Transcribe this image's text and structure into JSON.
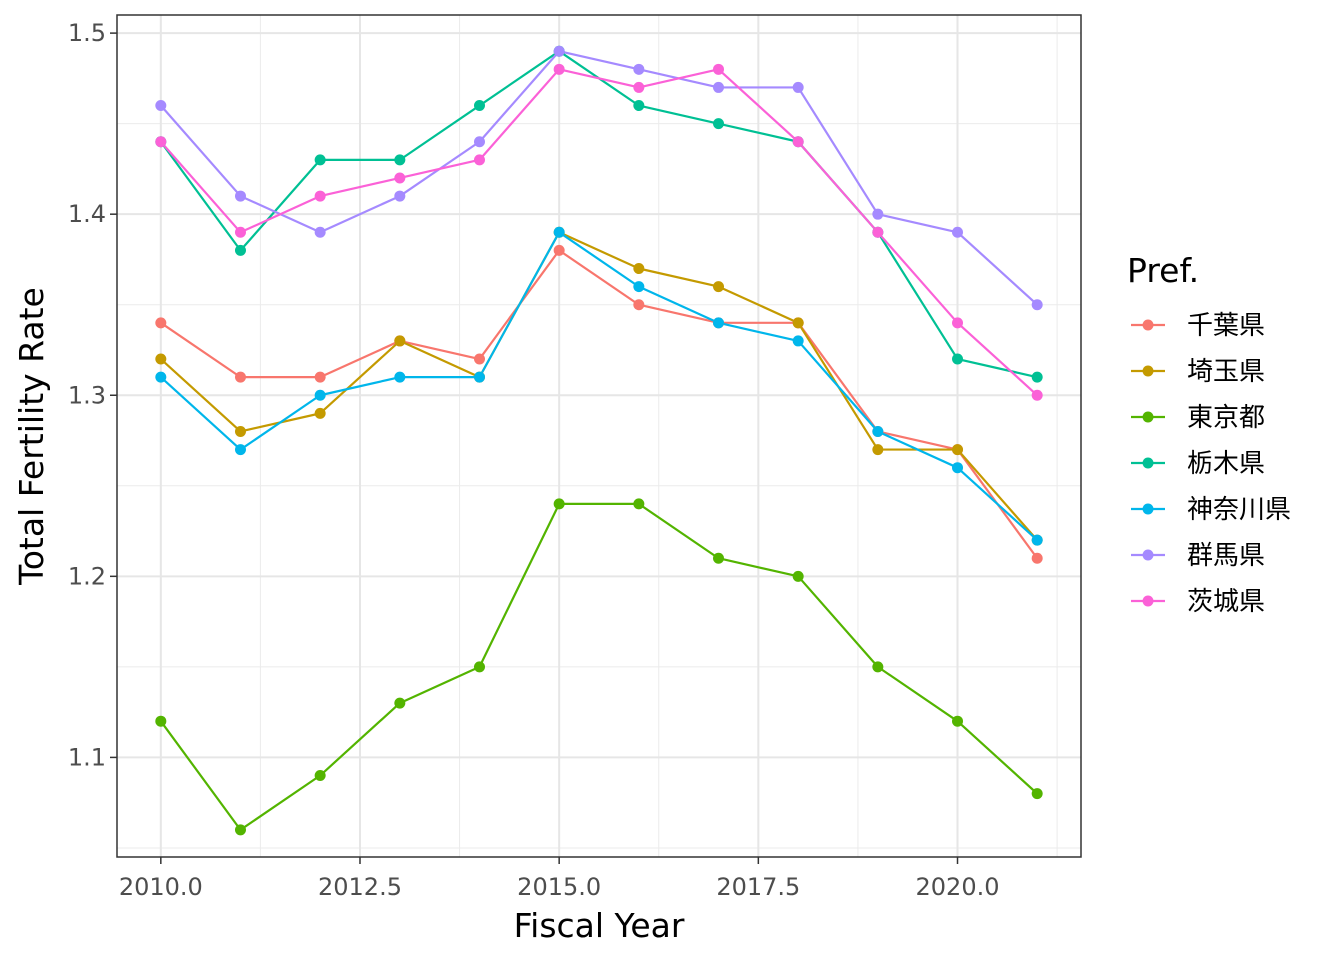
{
  "chart_data": {
    "type": "line",
    "title": "",
    "xlabel": "Fiscal Year",
    "ylabel": "Total Fertility Rate",
    "x": [
      2010,
      2011,
      2012,
      2013,
      2014,
      2015,
      2016,
      2017,
      2018,
      2019,
      2020,
      2021
    ],
    "xlim": [
      2009.45,
      2021.55
    ],
    "ylim": [
      1.045,
      1.51
    ],
    "x_ticks": [
      2010.0,
      2012.5,
      2015.0,
      2017.5,
      2020.0
    ],
    "x_tick_labels": [
      "2010.0",
      "2012.5",
      "2015.0",
      "2017.5",
      "2020.0"
    ],
    "y_ticks": [
      1.1,
      1.2,
      1.3,
      1.4,
      1.5
    ],
    "y_tick_labels": [
      "1.1",
      "1.2",
      "1.3",
      "1.4",
      "1.5"
    ],
    "grid": true,
    "legend_title": "Pref.",
    "legend_position": "right",
    "series": [
      {
        "name": "千葉県",
        "color": "#F8766D",
        "values": [
          1.34,
          1.31,
          1.31,
          1.33,
          1.32,
          1.38,
          1.35,
          1.34,
          1.34,
          1.28,
          1.27,
          1.21
        ]
      },
      {
        "name": "埼玉県",
        "color": "#C49A00",
        "values": [
          1.32,
          1.28,
          1.29,
          1.33,
          1.31,
          1.39,
          1.37,
          1.36,
          1.34,
          1.27,
          1.27,
          1.22
        ]
      },
      {
        "name": "東京都",
        "color": "#53B400",
        "values": [
          1.12,
          1.06,
          1.09,
          1.13,
          1.15,
          1.24,
          1.24,
          1.21,
          1.2,
          1.15,
          1.12,
          1.08
        ]
      },
      {
        "name": "栃木県",
        "color": "#00C094",
        "values": [
          1.44,
          1.38,
          1.43,
          1.43,
          1.46,
          1.49,
          1.46,
          1.45,
          1.44,
          1.39,
          1.32,
          1.31
        ]
      },
      {
        "name": "神奈川県",
        "color": "#00B6EB",
        "values": [
          1.31,
          1.27,
          1.3,
          1.31,
          1.31,
          1.39,
          1.36,
          1.34,
          1.33,
          1.28,
          1.26,
          1.22
        ]
      },
      {
        "name": "群馬県",
        "color": "#A58AFF",
        "values": [
          1.46,
          1.41,
          1.39,
          1.41,
          1.44,
          1.49,
          1.48,
          1.47,
          1.47,
          1.4,
          1.39,
          1.35
        ]
      },
      {
        "name": "茨城県",
        "color": "#FB61D7",
        "values": [
          1.44,
          1.39,
          1.41,
          1.42,
          1.43,
          1.48,
          1.47,
          1.48,
          1.44,
          1.39,
          1.34,
          1.3
        ]
      }
    ]
  }
}
